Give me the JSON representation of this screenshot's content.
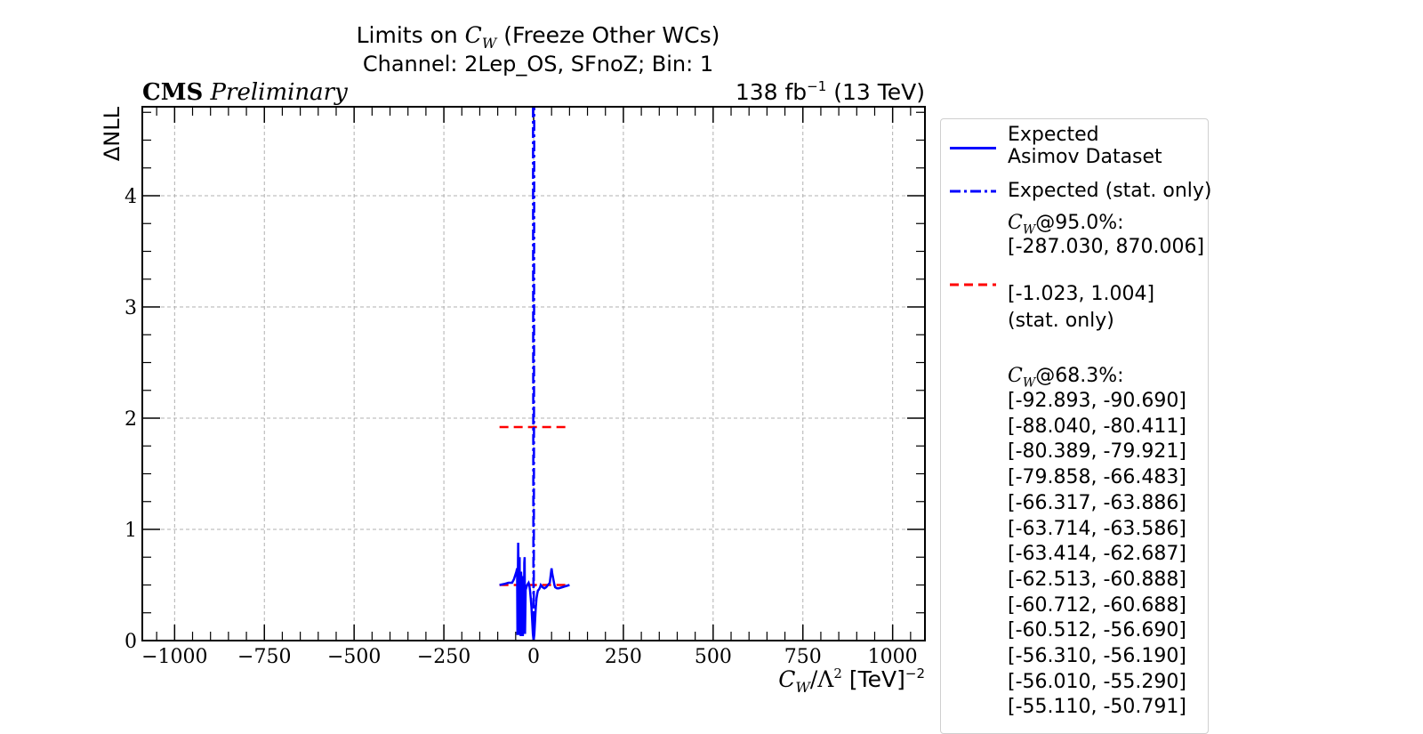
{
  "chart_data": {
    "type": "line",
    "title": {
      "prefix": "Limits on ",
      "param": "C",
      "param_sub": "W",
      "suffix": " (Freeze Other WCs)"
    },
    "subtitle": "Channel: 2Lep_OS, SFnoZ; Bin: 1",
    "cms_label": "CMS",
    "cms_sub": "Preliminary",
    "lumi": {
      "value": "138 fb",
      "exp": "−1",
      "energy": " (13 TeV)"
    },
    "xlabel": {
      "param": "C",
      "param_sub": "W",
      "denom": "/Λ",
      "denom_exp": "2",
      "unit": " [TeV]",
      "unit_exp": "−2"
    },
    "ylabel": "ΔNLL",
    "xlim": [
      -1090,
      1090
    ],
    "ylim": [
      0,
      4.8
    ],
    "x_ticks": [
      -1000,
      -750,
      -500,
      -250,
      0,
      250,
      500,
      750,
      1000
    ],
    "x_tick_labels": [
      "−1000",
      "−750",
      "−500",
      "−250",
      "0",
      "250",
      "500",
      "750",
      "1000"
    ],
    "y_ticks": [
      0,
      1,
      2,
      3,
      4
    ],
    "y_tick_labels": [
      "0",
      "1",
      "2",
      "3",
      "4"
    ],
    "grid": true,
    "legend_position": "outside-right",
    "series": [
      {
        "name": "Expected\nAsimov Dataset",
        "style": "solid",
        "color": "#0000ff",
        "x": [
          -95,
          -80,
          -70,
          -60,
          -55,
          -50,
          -48,
          -46,
          -45,
          -44,
          -43,
          -42,
          -41,
          -40,
          -39,
          -38,
          -37,
          -36,
          -35,
          -34,
          -33,
          -32,
          -31,
          -30,
          -29,
          -28,
          -27,
          -26,
          -25,
          -24,
          -22,
          -20,
          -18,
          -16,
          -14,
          -12,
          -10,
          -8,
          -6,
          -4,
          -2,
          0,
          2,
          4,
          6,
          8,
          10,
          12,
          15,
          18,
          20,
          25,
          30,
          35,
          40,
          45,
          48,
          50,
          52,
          55,
          58,
          60,
          65,
          70,
          80,
          90,
          100
        ],
        "y": [
          0.5,
          0.51,
          0.52,
          0.52,
          0.55,
          0.6,
          0.62,
          0.65,
          0.05,
          0.55,
          0.88,
          0.6,
          0.05,
          0.55,
          0.75,
          0.05,
          0.6,
          0.04,
          0.62,
          0.55,
          0.04,
          0.58,
          0.55,
          0.04,
          0.5,
          0.55,
          0.06,
          0.7,
          0.75,
          0.06,
          0.5,
          0.48,
          0.5,
          0.51,
          0.52,
          0.5,
          0.45,
          0.38,
          0.3,
          0.18,
          0.06,
          0.0,
          0.06,
          0.18,
          0.3,
          0.38,
          0.42,
          0.45,
          0.46,
          0.48,
          0.5,
          0.48,
          0.47,
          0.48,
          0.5,
          0.52,
          0.6,
          0.65,
          0.6,
          0.55,
          0.5,
          0.48,
          0.47,
          0.47,
          0.48,
          0.49,
          0.5
        ]
      },
      {
        "name": "Expected (stat. only)",
        "style": "dashdot",
        "color": "#0000ff",
        "x": [
          -1.6,
          -1.5,
          -1.4,
          -1.3,
          -1.2,
          -1.1,
          -1.0,
          -0.8,
          -0.6,
          -0.4,
          -0.2,
          0,
          0.2,
          0.4,
          0.6,
          0.8,
          1.0,
          1.1,
          1.2,
          1.3,
          1.4,
          1.5,
          1.6
        ],
        "y": [
          4.8,
          4.2,
          3.7,
          3.2,
          2.7,
          2.3,
          1.92,
          1.23,
          0.69,
          0.31,
          0.08,
          0.0,
          0.08,
          0.31,
          0.69,
          1.23,
          1.92,
          2.3,
          2.7,
          3.2,
          3.7,
          4.2,
          4.8
        ]
      }
    ],
    "limit_lines": [
      {
        "color": "#ff0000",
        "style": "dashed",
        "y": 1.92,
        "xmin": -95,
        "xmax": 100
      },
      {
        "color": "#ff0000",
        "style": "dashed",
        "y": 0.5,
        "xmin": -95,
        "xmax": 100
      }
    ],
    "legend": {
      "entry1_line1": "Expected",
      "entry1_line2": "Asimov Dataset",
      "entry2": "Expected (stat. only)",
      "cl95_label": "@95.0%:",
      "cl95_interval": "[-287.030, 870.006]",
      "cl95_stat_interval": "[-1.023, 1.004]",
      "stat_only": "(stat. only)",
      "cl68_label": "@68.3%:",
      "cl68_intervals": [
        "[-92.893, -90.690]",
        "[-88.040, -80.411]",
        "[-80.389, -79.921]",
        "[-79.858, -66.483]",
        "[-66.317, -63.886]",
        "[-63.714, -63.586]",
        "[-63.414, -62.687]",
        "[-62.513, -60.888]",
        "[-60.712, -60.688]",
        "[-60.512, -56.690]",
        "[-56.310, -56.190]",
        "[-56.010, -55.290]",
        "[-55.110, -50.791]"
      ]
    }
  }
}
